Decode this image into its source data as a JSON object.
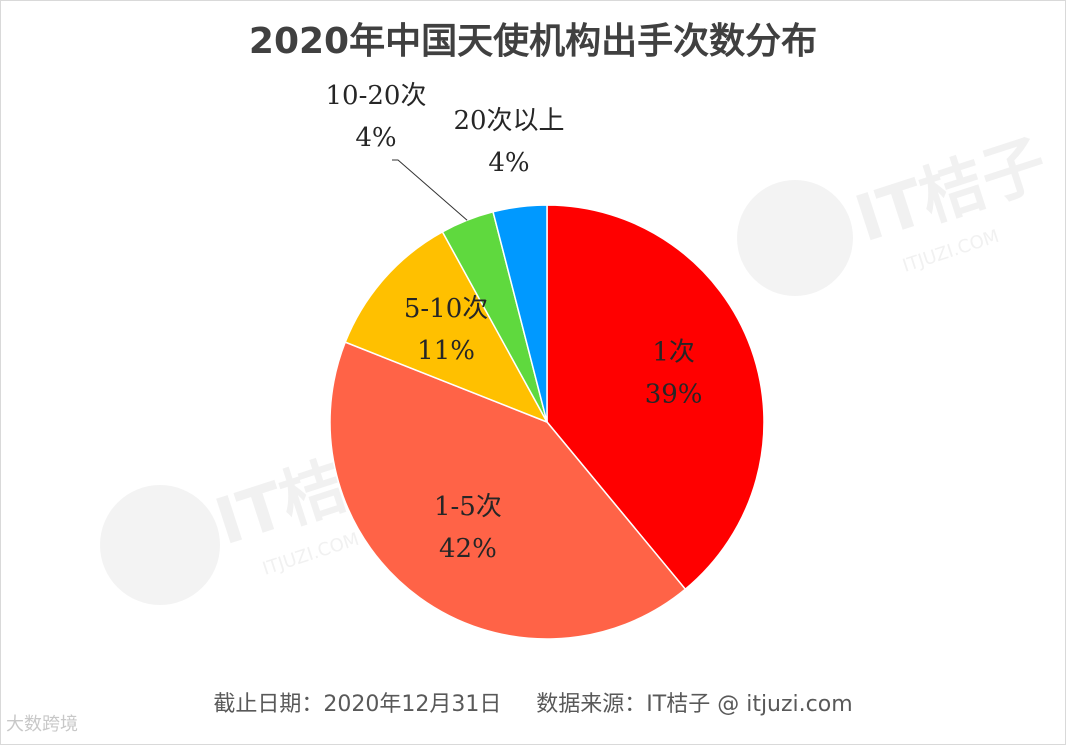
{
  "chart_data": {
    "type": "pie",
    "title": "2020年中国天使机构出手次数分布",
    "slices": [
      {
        "name": "1次",
        "value": 39,
        "label": "39%",
        "color": "#ff0000"
      },
      {
        "name": "1-5次",
        "value": 42,
        "label": "42%",
        "color": "#ff6347"
      },
      {
        "name": "5-10次",
        "value": 11,
        "label": "11%",
        "color": "#ffc000"
      },
      {
        "name": "10-20次",
        "value": 4,
        "label": "4%",
        "color": "#5fd93e"
      },
      {
        "name": "20次以上",
        "value": 4,
        "label": "4%",
        "color": "#0099ff"
      }
    ]
  },
  "footer": {
    "date": "截止日期：2020年12月31日",
    "source": "数据来源：IT桔子 @ itjuzi.com"
  },
  "watermarks": {
    "brand": "IT桔子",
    "url": "ITJUZI.COM",
    "corner": "大数跨境"
  }
}
